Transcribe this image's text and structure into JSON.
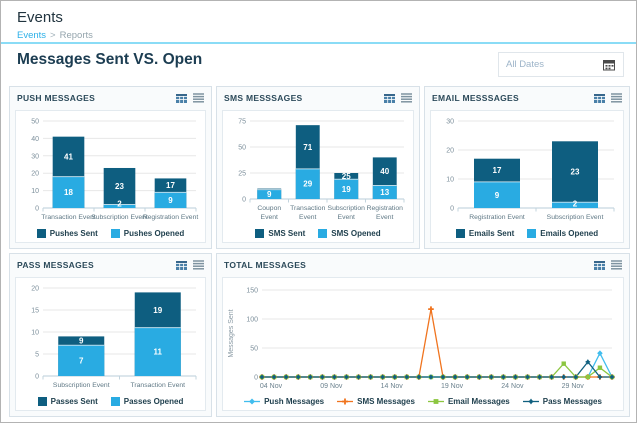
{
  "window": {
    "title": "Events"
  },
  "breadcrumb": {
    "link": "Events",
    "separator": ">",
    "current": "Reports"
  },
  "section": {
    "title": "Messages Sent VS. Open"
  },
  "date_filter": {
    "value": "All Dates",
    "icon": "calendar-icon"
  },
  "panel_actions": {
    "table_icon": "table-view-icon",
    "menu_icon": "chart-menu-icon"
  },
  "colors": {
    "sent_dark_blue": "#0e5e80",
    "opened_light_blue": "#29abe2",
    "sms_orange": "#f0741f",
    "email_green": "#8cc640",
    "divider_blue": "#8adcf6",
    "breadcrumb_link": "#2cb0e8"
  },
  "chart_data": [
    {
      "type": "bar",
      "title": "PUSH MESSAGES",
      "categories": [
        "Transaction Event",
        "Subscription Event",
        "Registration Event"
      ],
      "series": [
        {
          "name": "Pushes Sent",
          "color": "#0e5e80",
          "values": [
            41,
            23,
            17
          ],
          "labels": [
            "41",
            "23",
            "17"
          ]
        },
        {
          "name": "Pushes Opened",
          "color": "#29abe2",
          "values": [
            18,
            2,
            9
          ],
          "labels": [
            "18",
            "2",
            "9"
          ]
        }
      ],
      "overlay": true,
      "grid": true,
      "legend_position": "bottom",
      "ylim": [
        0,
        50
      ],
      "yticks": [
        0,
        10,
        20,
        30,
        40,
        50
      ],
      "wrap_labels": false
    },
    {
      "type": "bar",
      "title": "SMS MESSSAGES",
      "categories": [
        "Coupon Event",
        "Transaction Event",
        "Subscription Event",
        "Registration Event"
      ],
      "series": [
        {
          "name": "SMS Sent",
          "color": "#0e5e80",
          "values": [
            10,
            71,
            25,
            40
          ],
          "labels": [
            "",
            "71",
            "25",
            "40"
          ]
        },
        {
          "name": "SMS Opened",
          "color": "#29abe2",
          "values": [
            9,
            29,
            19,
            13
          ],
          "labels": [
            "9",
            "29",
            "19",
            "13"
          ]
        }
      ],
      "overlay": true,
      "grid": true,
      "legend_position": "bottom",
      "ylim": [
        0,
        75
      ],
      "yticks": [
        0,
        25,
        50,
        75
      ],
      "wrap_labels": true
    },
    {
      "type": "bar",
      "title": "EMAIL MESSSAGES",
      "categories": [
        "Registration Event",
        "Subscription Event"
      ],
      "series": [
        {
          "name": "Emails Sent",
          "color": "#0e5e80",
          "values": [
            17,
            23
          ],
          "labels": [
            "17",
            "23"
          ]
        },
        {
          "name": "Emails Opened",
          "color": "#29abe2",
          "values": [
            9,
            2
          ],
          "labels": [
            "9",
            "2"
          ]
        }
      ],
      "overlay": true,
      "grid": true,
      "legend_position": "bottom",
      "ylim": [
        0,
        30
      ],
      "yticks": [
        0,
        10,
        20,
        30
      ],
      "wrap_labels": false
    },
    {
      "type": "bar",
      "title": "PASS MESSAGES",
      "categories": [
        "Subscription Event",
        "Transaction Event"
      ],
      "series": [
        {
          "name": "Passes Sent",
          "color": "#0e5e80",
          "values": [
            9,
            19
          ],
          "labels": [
            "9",
            "19"
          ]
        },
        {
          "name": "Passes Opened",
          "color": "#29abe2",
          "values": [
            7,
            11
          ],
          "labels": [
            "7",
            "11"
          ]
        }
      ],
      "overlay": true,
      "grid": true,
      "legend_position": "bottom",
      "ylim": [
        0,
        20
      ],
      "yticks": [
        0,
        5,
        10,
        15,
        20
      ],
      "wrap_labels": false
    },
    {
      "type": "line",
      "title": "TOTAL MESSAGES",
      "ylabel": "Messages Sent",
      "num_points": 30,
      "x_tick_labels": [
        "04 Nov",
        "09 Nov",
        "14 Nov",
        "19 Nov",
        "24 Nov",
        "29 Nov"
      ],
      "x_tick_indices": [
        0,
        5,
        10,
        15,
        20,
        25
      ],
      "ylim": [
        0,
        150
      ],
      "yticks": [
        0,
        50,
        100,
        150
      ],
      "grid": true,
      "legend_position": "bottom",
      "series": [
        {
          "name": "Push Messages",
          "color": "#41bdee",
          "marker": "diamond",
          "values": [
            0,
            0,
            0,
            0,
            0,
            0,
            0,
            0,
            0,
            0,
            0,
            0,
            0,
            0,
            0,
            0,
            0,
            0,
            0,
            0,
            0,
            0,
            0,
            0,
            0,
            0,
            0,
            0,
            41,
            0
          ]
        },
        {
          "name": "SMS Messages",
          "color": "#f0741f",
          "marker": "plus",
          "values": [
            0,
            0,
            0,
            0,
            0,
            0,
            0,
            0,
            0,
            0,
            0,
            0,
            0,
            0,
            117,
            0,
            0,
            0,
            0,
            0,
            0,
            0,
            0,
            0,
            0,
            0,
            0,
            0,
            0,
            0
          ]
        },
        {
          "name": "Email Messages",
          "color": "#8cc640",
          "marker": "square",
          "values": [
            0,
            0,
            0,
            0,
            0,
            0,
            0,
            0,
            0,
            0,
            0,
            0,
            0,
            0,
            0,
            0,
            0,
            0,
            0,
            0,
            0,
            0,
            0,
            0,
            0,
            23,
            0,
            0,
            16,
            0
          ]
        },
        {
          "name": "Pass Messages",
          "color": "#10607f",
          "marker": "star",
          "values": [
            0,
            0,
            0,
            0,
            0,
            0,
            0,
            0,
            0,
            0,
            0,
            0,
            0,
            0,
            0,
            0,
            0,
            0,
            0,
            0,
            0,
            0,
            0,
            0,
            0,
            0,
            0,
            26,
            0,
            0
          ]
        }
      ]
    }
  ]
}
